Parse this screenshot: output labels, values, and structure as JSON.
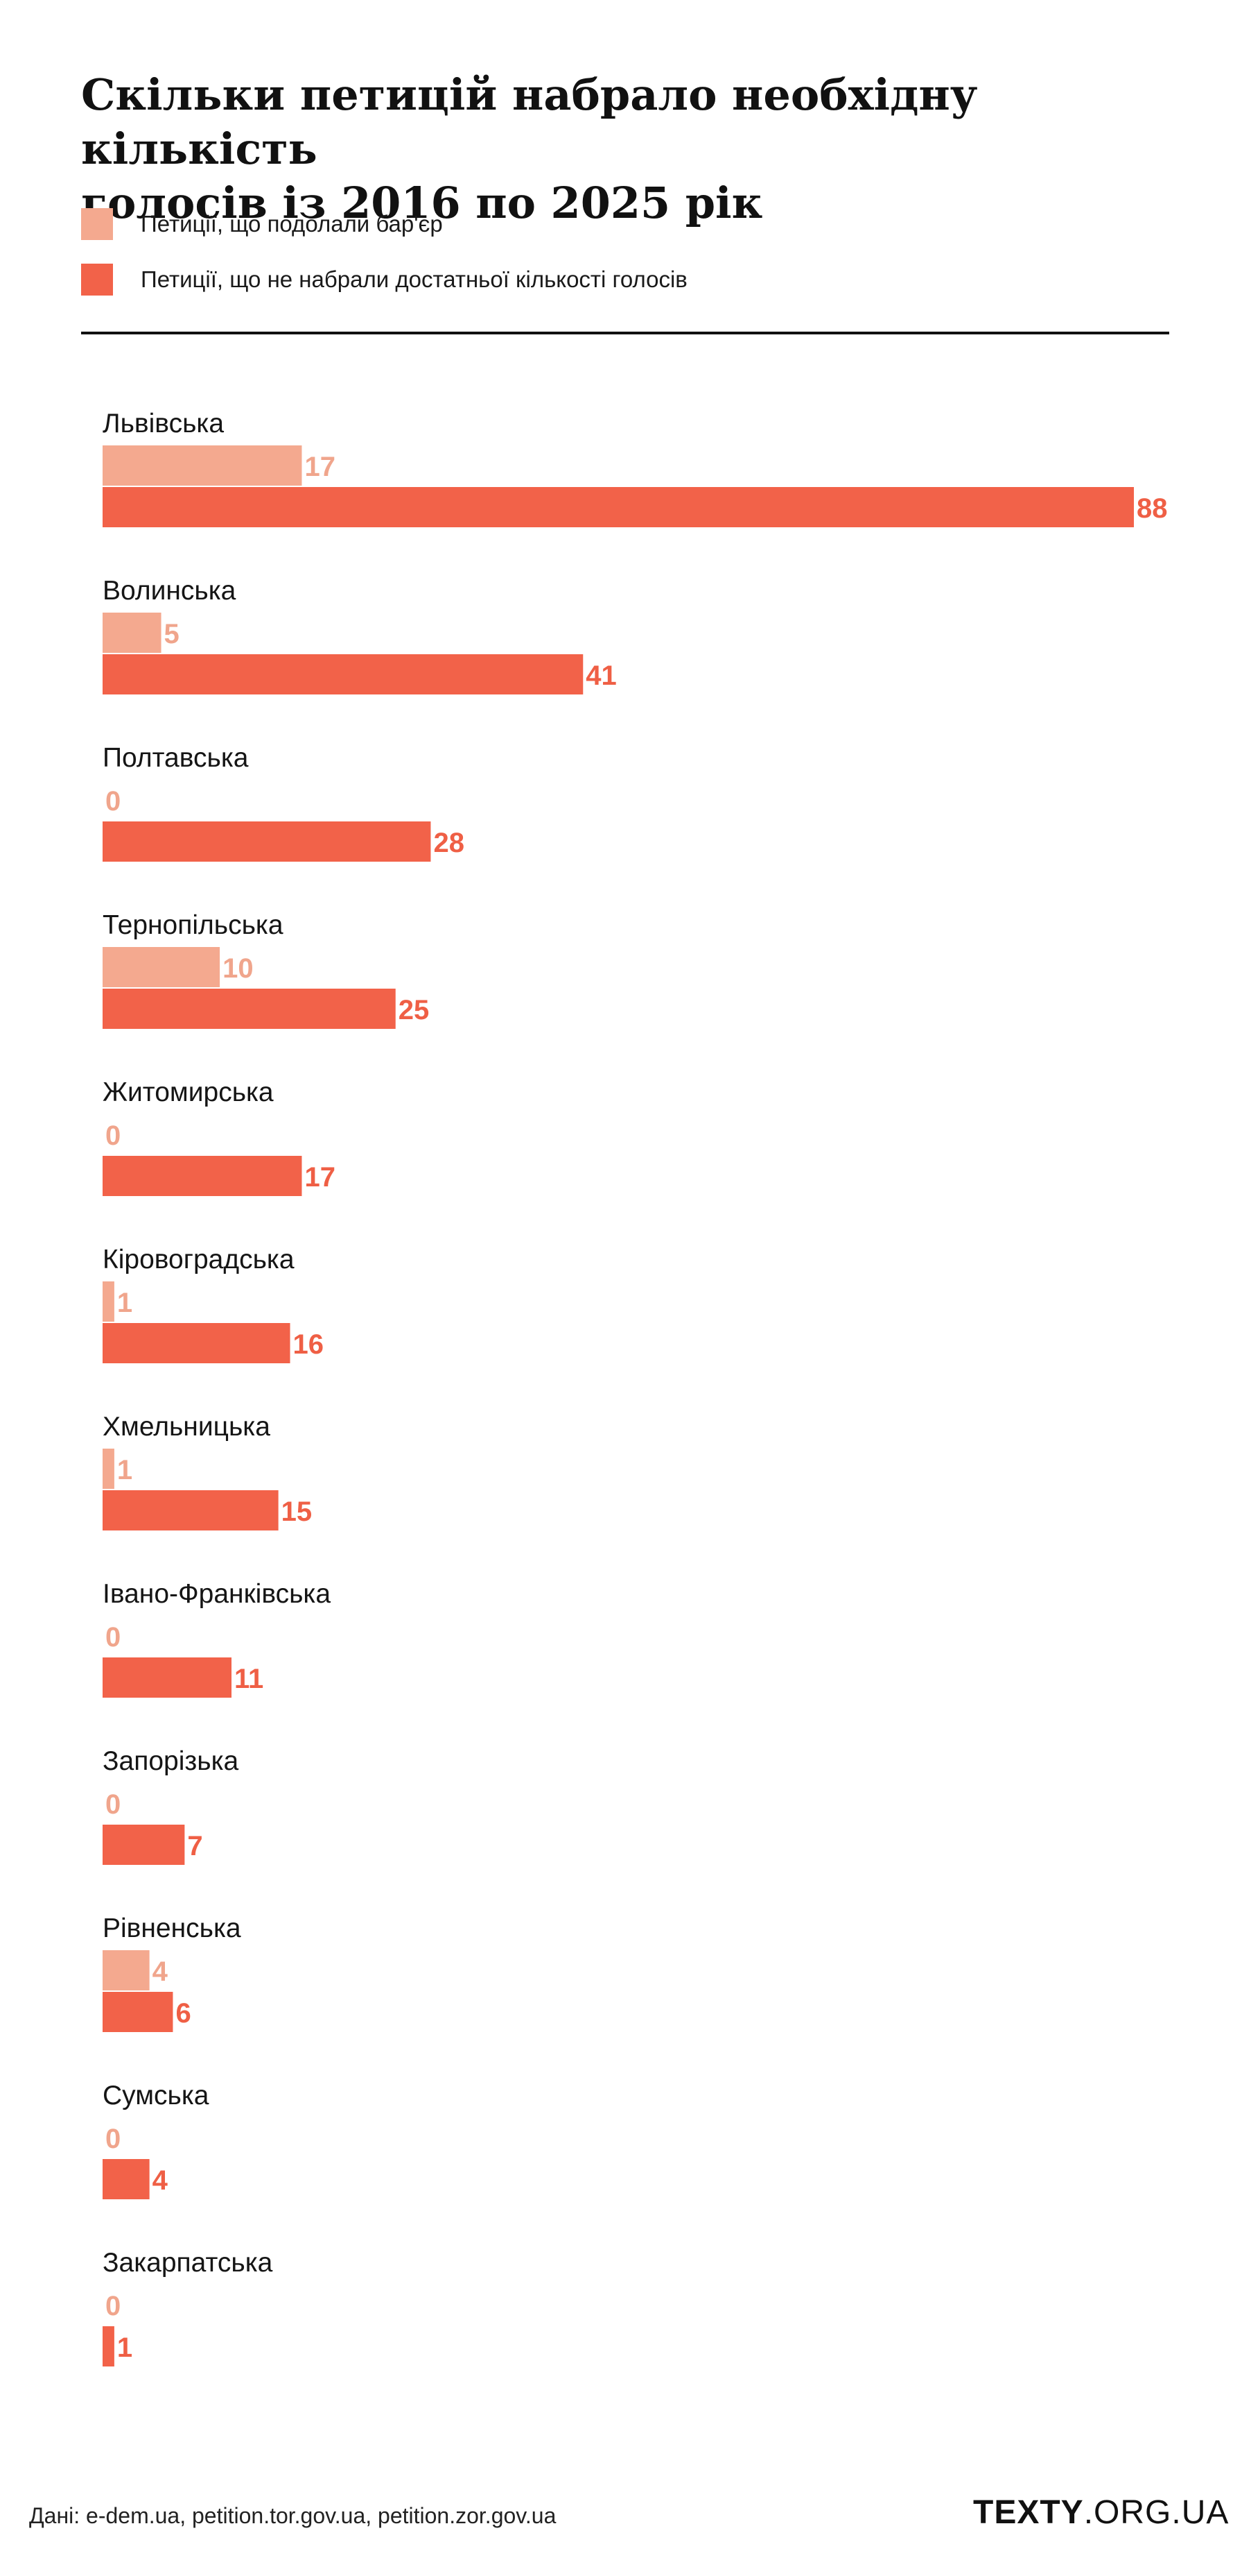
{
  "title_lines": [
    "Скільки петицій набрало необхідну кількість",
    "голосів із 2016 по 2025 рік"
  ],
  "legend": [
    {
      "label": "Петиції, що подолали бар'єр",
      "color": "#f4a98f"
    },
    {
      "label": "Петиції, що не набрали достатньої кількості голосів",
      "color": "#f26249"
    }
  ],
  "colors": {
    "passed": "#f4a98f",
    "failed": "#f26249",
    "passed_text": "#f0a58c",
    "failed_text": "#ef5f45",
    "category_text": "#151515"
  },
  "chart_data": {
    "type": "bar",
    "orientation": "horizontal",
    "categories": [
      "Львівська",
      "Волинська",
      "Полтавська",
      "Тернопільська",
      "Житомирська",
      "Кіровоградська",
      "Хмельницька",
      "Івано-Франківська",
      "Запорізька",
      "Рівненська",
      "Сумська",
      "Закарпатська"
    ],
    "series": [
      {
        "name": "Петиції, що подолали бар'єр",
        "values": [
          17,
          5,
          0,
          10,
          0,
          1,
          1,
          0,
          0,
          4,
          0,
          0
        ]
      },
      {
        "name": "Петиції, що не набрали достатньої кількості голосів",
        "values": [
          88,
          41,
          28,
          25,
          17,
          16,
          15,
          11,
          7,
          6,
          4,
          1
        ]
      }
    ],
    "xlim": [
      0,
      88
    ],
    "grid": false,
    "legend_position": "top-left",
    "data_labels": true
  },
  "footer": {
    "source": "Дані: e-dem.ua, petition.tor.gov.ua, petition.zor.gov.ua",
    "logo_bold": "TEXTY",
    "logo_rest": ".ORG.UA"
  }
}
